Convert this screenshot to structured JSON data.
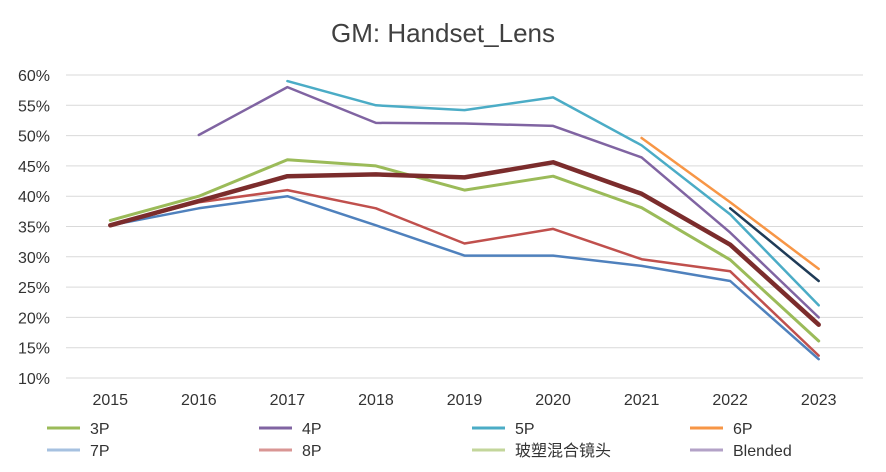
{
  "chart_data": {
    "type": "line",
    "title": "GM: Handset_Lens",
    "xlabel": "",
    "ylabel": "",
    "categories": [
      "2015",
      "2016",
      "2017",
      "2018",
      "2019",
      "2020",
      "2021",
      "2022",
      "2023"
    ],
    "ylim": [
      0.1,
      0.6
    ],
    "yticks": [
      0.1,
      0.15,
      0.2,
      0.25,
      0.3,
      0.35,
      0.4,
      0.45,
      0.5,
      0.55,
      0.6
    ],
    "ytick_labels": [
      "10%",
      "15%",
      "20%",
      "25%",
      "30%",
      "35%",
      "40%",
      "45%",
      "50%",
      "55%",
      "60%"
    ],
    "grid": true,
    "legend_position": "bottom",
    "series": [
      {
        "name": "3P",
        "color": "#9bbb59",
        "width": 3,
        "values": [
          0.36,
          0.4,
          0.46,
          0.45,
          0.41,
          0.433,
          0.381,
          0.295,
          0.161
        ]
      },
      {
        "name": "4P",
        "color": "#8064a2",
        "width": 2.5,
        "values": [
          null,
          0.501,
          0.58,
          0.521,
          0.52,
          0.516,
          0.464,
          0.34,
          0.2
        ]
      },
      {
        "name": "5P",
        "color": "#4bacc6",
        "width": 2.5,
        "values": [
          null,
          null,
          0.59,
          0.55,
          0.542,
          0.563,
          0.484,
          0.37,
          0.22
        ]
      },
      {
        "name": "6P",
        "color": "#f79646",
        "width": 2.5,
        "values": [
          null,
          null,
          null,
          null,
          null,
          null,
          0.496,
          0.39,
          0.28
        ]
      },
      {
        "name": "7P",
        "color": "#4f81bd",
        "width": 2.5,
        "values": [
          0.352,
          0.38,
          0.4,
          0.352,
          0.302,
          0.302,
          0.285,
          0.26,
          0.131
        ]
      },
      {
        "name": "8P",
        "color": "#c0504d",
        "width": 2.5,
        "values": [
          0.352,
          0.39,
          0.41,
          0.38,
          0.322,
          0.346,
          0.296,
          0.276,
          0.137
        ]
      },
      {
        "name": "玻塑混合镜头",
        "color": "#1f3b57",
        "width": 2.5,
        "values": [
          null,
          null,
          null,
          null,
          null,
          null,
          null,
          0.38,
          0.26
        ]
      },
      {
        "name": "Blended",
        "color": "#7b2c2c",
        "width": 4.5,
        "values": [
          0.352,
          0.392,
          0.433,
          0.436,
          0.431,
          0.456,
          0.404,
          0.32,
          0.188
        ]
      }
    ],
    "legend": [
      {
        "label": "3P",
        "color": "#9bbb59"
      },
      {
        "label": "4P",
        "color": "#8064a2"
      },
      {
        "label": "5P",
        "color": "#4bacc6"
      },
      {
        "label": "6P",
        "color": "#f79646"
      },
      {
        "label": "7P",
        "color": "#a6c1e0"
      },
      {
        "label": "8P",
        "color": "#d99694"
      },
      {
        "label": "玻塑混合镜头",
        "color": "#c3d69b"
      },
      {
        "label": "Blended",
        "color": "#b3a2c7"
      }
    ]
  }
}
